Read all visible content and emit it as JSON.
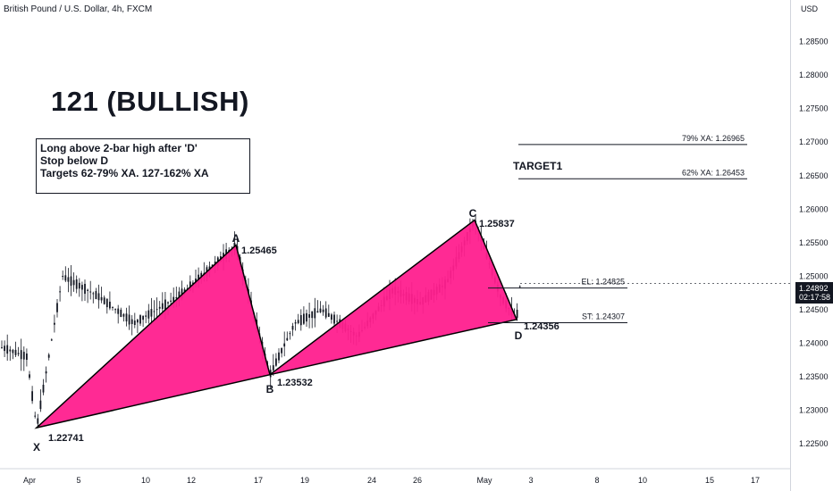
{
  "header": {
    "title": "British Pound / U.S. Dollar, 4h, FXCM"
  },
  "pattern_title": "121 (BULLISH)",
  "note": {
    "lines": [
      "Long above 2-bar high after 'D'",
      "Stop below D",
      "Targets 62-79% XA. 127-162%  XA"
    ]
  },
  "currency_label": "USD",
  "last_price": {
    "value": "1.24892",
    "countdown": "02:17:58"
  },
  "colors": {
    "pattern_fill": "#ff1f8e",
    "candle": "#131722",
    "text": "#131722",
    "price_tag_bg": "#131722"
  },
  "chart_data": {
    "type": "line",
    "x_axis": {
      "tick_labels": [
        "Apr",
        "5",
        "10",
        "12",
        "17",
        "19",
        "24",
        "26",
        "May",
        "3",
        "8",
        "10",
        "15",
        "17"
      ]
    },
    "y_axis": {
      "position": "right",
      "tick_labels": [
        "1.28500",
        "1.28000",
        "1.27500",
        "1.27000",
        "1.26500",
        "1.26000",
        "1.25500",
        "1.25000",
        "1.24500",
        "1.24000",
        "1.23500",
        "1.23000",
        "1.22500"
      ],
      "range": [
        1.2213,
        1.2912
      ]
    },
    "pattern_points": [
      {
        "name": "X",
        "value": 1.22741,
        "label": "1.22741"
      },
      {
        "name": "A",
        "value": 1.25465,
        "label": "1.25465"
      },
      {
        "name": "B",
        "value": 1.23532,
        "label": "1.23532"
      },
      {
        "name": "C",
        "value": 1.25837,
        "label": "1.25837"
      },
      {
        "name": "D",
        "value": 1.24356,
        "label": "1.24356"
      }
    ],
    "levels": [
      {
        "label": "79% XA: 1.26965",
        "value": 1.26965
      },
      {
        "label": "62% XA: 1.26453",
        "value": 1.26453
      },
      {
        "label": "EL: 1.24825",
        "value": 1.24825
      },
      {
        "label": "ST: 1.24307",
        "value": 1.24307
      }
    ],
    "annotations": [
      "TARGET1"
    ]
  }
}
